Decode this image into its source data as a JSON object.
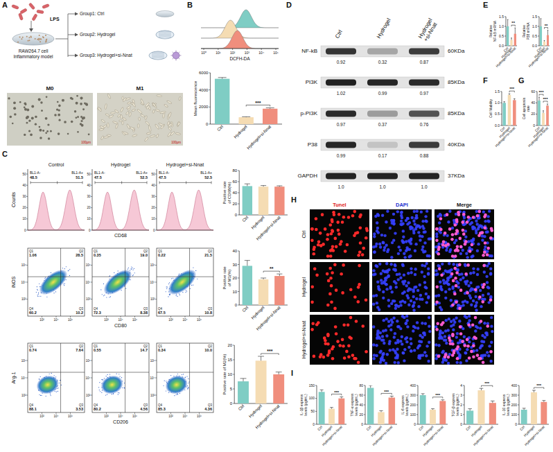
{
  "panel_letters": [
    "A",
    "B",
    "C",
    "D",
    "E",
    "F",
    "G",
    "H",
    "I"
  ],
  "panel_A": {
    "stimulus": "LPS",
    "model": "RAW264.7 cell Inflammatory model",
    "groups": [
      "Group1: Ctrl",
      "Group2: Hydrogel",
      "Group3: Hydrogel+si-Nnat"
    ],
    "images": [
      {
        "label": "M0",
        "scale": "100μm"
      },
      {
        "label": "M1",
        "scale": "100μm"
      }
    ]
  },
  "panel_B_histogram": {
    "x_label": "DCFH-DA",
    "xticks": [
      "10⁰",
      "10¹",
      "10²",
      "10³",
      "10⁴",
      "10⁵"
    ]
  },
  "blot": {
    "columns": [
      "Ctrl",
      "Hydrogel",
      "Hydrogel+si-Nnat"
    ],
    "rows": [
      {
        "name": "NF-kB",
        "size": "60KDa",
        "values": [
          0.92,
          0.32,
          0.87
        ]
      },
      {
        "name": "PI3K",
        "size": "85KDa",
        "values": [
          1.02,
          0.99,
          0.97
        ]
      },
      {
        "name": "p-PI3K",
        "size": "85KDa",
        "values": [
          0.97,
          0.37,
          0.76
        ]
      },
      {
        "name": "P38",
        "size": "40KDa",
        "values": [
          0.99,
          0.17,
          0.88
        ]
      },
      {
        "name": "GAPDH",
        "size": "37KDa",
        "values": [
          1.0,
          1.0,
          1.0
        ],
        "value_labels": [
          "1.0",
          "1.0",
          "1.0"
        ]
      }
    ]
  },
  "flow_CD68": {
    "titles": [
      "Control",
      "Hydrogel",
      "Hydrogel+si-Nnat"
    ],
    "y_label": "Counts",
    "x_label": "CD68",
    "gate_labels": [
      "BL1-A-",
      "BL1-A+"
    ],
    "yticks": [
      0,
      10,
      20,
      30,
      40,
      50
    ],
    "plots": [
      [
        48.5,
        51.5
      ],
      [
        47.5,
        52.5
      ],
      [
        47.5,
        52.5
      ]
    ]
  },
  "flow_M1": {
    "y_label": "iNOS",
    "x_label": "CD80",
    "quadrants": [
      "Q1",
      "Q2",
      "Q3",
      "Q4"
    ],
    "ticks": [
      "10²",
      "10⁴",
      "10⁶"
    ],
    "plots": [
      {
        "values": [
          1.06,
          28.5,
          10.2,
          60.2
        ]
      },
      {
        "values": [
          0.35,
          19.0,
          8.38,
          72.3
        ],
        "value_labels": [
          "0.35",
          "19.0",
          "8.38",
          "72.3"
        ]
      },
      {
        "values": [
          0.22,
          21.5,
          10.8,
          67.5
        ]
      }
    ]
  },
  "flow_M2": {
    "y_label": "Arg-1",
    "x_label": "CD206",
    "quadrants": [
      "Q1",
      "Q2",
      "Q3",
      "Q4"
    ],
    "ticks": [
      "10²",
      "10⁴",
      "10⁶"
    ],
    "plots": [
      {
        "values": [
          0.74,
          7.64,
          3.53,
          88.1
        ]
      },
      {
        "values": [
          0.55,
          14.7,
          4.56,
          80.2
        ]
      },
      {
        "values": [
          0.34,
          10.0,
          4.36,
          85.3
        ],
        "value_labels": [
          "0.34",
          "10.0",
          "4.36",
          "85.3"
        ]
      }
    ]
  },
  "tunel": {
    "channels": [
      "Tunel",
      "DAPI",
      "Merge"
    ],
    "rows": [
      "Ctrl",
      "Hydrogel",
      "Hydrogel+si-Nnat"
    ]
  },
  "chart_data": [
    {
      "type": "bar",
      "y_label": "Mean fluorescence",
      "categories": [
        "Ctrl",
        "Hydrogel",
        "Hydrogel+si-Nnat"
      ],
      "colors": [
        "#7fcdc4",
        "#f5dcb3",
        "#f08e7d"
      ],
      "values": [
        5300,
        800,
        1800
      ],
      "errors": [
        150,
        60,
        100
      ],
      "ylim": [
        0,
        6000
      ],
      "yticks": [
        0,
        2000,
        4000,
        6000
      ],
      "annotations": [
        {
          "text": "***",
          "from": 1,
          "to": 2
        }
      ]
    },
    {
      "type": "bar",
      "y_label": "Positive rate of CD68(%)",
      "categories": [
        "Ctrl",
        "Hydrogel",
        "Hydrogel+si-Nnat"
      ],
      "colors": [
        "#7fcdc4",
        "#f5dcb3",
        "#f08e7d"
      ],
      "values": [
        52,
        51,
        51
      ],
      "errors": [
        4,
        2,
        1.5
      ],
      "ylim": [
        0,
        80
      ],
      "yticks": [
        0,
        20,
        40,
        60,
        80
      ]
    },
    {
      "type": "bar",
      "y_label": "Positive rate of M1(%)",
      "categories": [
        "Ctrl",
        "Hydrogel",
        "Hydrogel+si-Nnat"
      ],
      "colors": [
        "#7fcdc4",
        "#f5dcb3",
        "#f08e7d"
      ],
      "values": [
        29,
        19,
        21.5
      ],
      "errors": [
        4,
        1,
        1.5
      ],
      "ylim": [
        0,
        40
      ],
      "yticks": [
        0,
        10,
        20,
        30,
        40
      ],
      "annotations": [
        {
          "text": "**",
          "from": 1,
          "to": 2
        }
      ]
    },
    {
      "type": "bar",
      "y_label": "Positive rate of M2(%)",
      "categories": [
        "Ctrl",
        "Hydrogel",
        "Hydrogel+si-Nnat"
      ],
      "colors": [
        "#7fcdc4",
        "#f5dcb3",
        "#f08e7d"
      ],
      "values": [
        7.6,
        14.7,
        10
      ],
      "errors": [
        1,
        1.5,
        0.8
      ],
      "ylim": [
        0,
        20
      ],
      "yticks": [
        0,
        5,
        10,
        15,
        20
      ],
      "annotations": [
        {
          "text": "***",
          "from": 1,
          "to": 2
        }
      ]
    },
    {
      "type": "bar",
      "y_label": "Relative NF-kB mRNA",
      "categories": [
        "Ctrl",
        "Hydrogel",
        "Hydrogel+si-Nnat"
      ],
      "colors": [
        "#7fcdc4",
        "#f5dcb3",
        "#f08e7d"
      ],
      "values": [
        1.0,
        0.3,
        0.62
      ],
      "errors": [
        0.35,
        0.1,
        0.3
      ],
      "ylim": [
        0,
        1.5
      ],
      "yticks": [
        {
          "value": 0,
          "label": "0.0"
        },
        0.5,
        {
          "value": 1,
          "label": "1.0"
        },
        1.5
      ],
      "annotations": [
        {
          "text": "**",
          "from": 1,
          "to": 2
        }
      ]
    },
    {
      "type": "bar",
      "y_label": "Relative P38 mRNA",
      "categories": [
        "Ctrl",
        "Hydrogel",
        "Hydrogel+si-Nnat"
      ],
      "colors": [
        "#7fcdc4",
        "#f5dcb3",
        "#f08e7d"
      ],
      "values": [
        1.0,
        0.22,
        0.55
      ],
      "errors": [
        0.4,
        0.05,
        0.25
      ],
      "ylim": [
        0,
        1.5
      ],
      "yticks": [
        {
          "value": 0,
          "label": "0.0"
        },
        0.5,
        {
          "value": 1,
          "label": "1.0"
        },
        1.5
      ],
      "annotations": [
        {
          "text": "**",
          "from": 1,
          "to": 2
        }
      ]
    },
    {
      "type": "bar",
      "y_label": "Cell Viability",
      "categories": [
        "Ctrl",
        "Hydrogel",
        "Hydrogel+si-Nnat"
      ],
      "colors": [
        "#7fcdc4",
        "#f5dcb3",
        "#f08e7d"
      ],
      "values": [
        1.0,
        1.35,
        1.12
      ],
      "errors": [
        0.05,
        0.05,
        0.06
      ],
      "ylim": [
        0,
        1.5
      ],
      "yticks": [
        {
          "value": 0,
          "label": "0.0"
        },
        0.5,
        {
          "value": 1,
          "label": "1.0"
        },
        1.5
      ],
      "annotations": [
        {
          "text": "***",
          "from": 1,
          "to": 2
        }
      ]
    },
    {
      "type": "bar",
      "y_label": "Cell apoptosis rate",
      "categories": [
        "Ctrl",
        "Hydrogel",
        "Hydrogel+si-Nnat"
      ],
      "colors": [
        "#7fcdc4",
        "#f5dcb3",
        "#f08e7d"
      ],
      "values": [
        44,
        22,
        35
      ],
      "errors": [
        6,
        4,
        3
      ],
      "ylim": [
        0,
        60
      ],
      "yticks": [
        0,
        20,
        40,
        60
      ],
      "annotations": [
        {
          "text": "***",
          "from": 0,
          "to": 1
        },
        {
          "text": "***",
          "from": 1,
          "to": 2
        }
      ]
    },
    {
      "type": "bar",
      "y_label": "IL-1β express levels (pg/mL)",
      "categories": [
        "Ctrl",
        "Hydrogel",
        "Hydrogel+si-Nnat"
      ],
      "colors": [
        "#7fcdc4",
        "#f5dcb3",
        "#f08e7d"
      ],
      "values": [
        125,
        60,
        100
      ],
      "errors": [
        8,
        5,
        6
      ],
      "ylim": [
        0,
        150
      ],
      "yticks": [
        0,
        50,
        100,
        150
      ],
      "annotations": [
        {
          "text": "***",
          "from": 1,
          "to": 2
        }
      ]
    },
    {
      "type": "bar",
      "y_label": "TNF-α express levels (pg/mL)",
      "categories": [
        "Ctrl",
        "Hydrogel",
        "Hydrogel+si-Nnat"
      ],
      "colors": [
        "#7fcdc4",
        "#f5dcb3",
        "#f08e7d"
      ],
      "values": [
        75,
        25,
        55
      ],
      "errors": [
        5,
        3,
        3
      ],
      "ylim": [
        0,
        80
      ],
      "yticks": [
        0,
        20,
        40,
        60,
        80
      ],
      "annotations": [
        {
          "text": "***",
          "from": 1,
          "to": 2
        }
      ]
    },
    {
      "type": "bar",
      "y_label": "IL-6 express levels (pg/mL)",
      "categories": [
        "Ctrl",
        "Hydrogel",
        "Hydrogel+si-Nnat"
      ],
      "colors": [
        "#7fcdc4",
        "#f5dcb3",
        "#f08e7d"
      ],
      "values": [
        300,
        150,
        240
      ],
      "errors": [
        15,
        10,
        12
      ],
      "ylim": [
        0,
        400
      ],
      "yticks": [
        0,
        100,
        200,
        300,
        400
      ],
      "annotations": [
        {
          "text": "***",
          "from": 1,
          "to": 2
        }
      ]
    },
    {
      "type": "bar",
      "y_label": "TGF-β express levels (pg/mL)",
      "categories": [
        "Ctrl",
        "Hydrogel",
        "Hydrogel+si-Nnat"
      ],
      "colors": [
        "#7fcdc4",
        "#f5dcb3",
        "#f08e7d"
      ],
      "values": [
        1.4,
        3.5,
        2.2
      ],
      "errors": [
        0.2,
        0.2,
        0.2
      ],
      "ylim": [
        0,
        4
      ],
      "yticks": [
        0,
        1,
        2,
        3,
        4
      ],
      "annotations": [
        {
          "text": "***",
          "from": 1,
          "to": 2
        }
      ]
    },
    {
      "type": "bar",
      "y_label": "IL-10 express levels (pg/mL)",
      "categories": [
        "Ctrl",
        "Hydrogel",
        "Hydrogel+si-Nnat"
      ],
      "colors": [
        "#7fcdc4",
        "#f5dcb3",
        "#f08e7d"
      ],
      "values": [
        150,
        330,
        230
      ],
      "errors": [
        15,
        20,
        15
      ],
      "ylim": [
        0,
        400
      ],
      "yticks": [
        0,
        100,
        200,
        300,
        400
      ],
      "annotations": [
        {
          "text": "***",
          "from": 1,
          "to": 2
        }
      ]
    }
  ]
}
